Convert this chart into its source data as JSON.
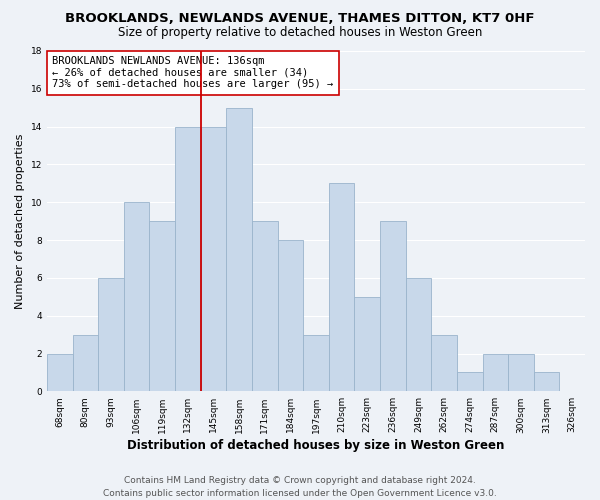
{
  "title": "BROOKLANDS, NEWLANDS AVENUE, THAMES DITTON, KT7 0HF",
  "subtitle": "Size of property relative to detached houses in Weston Green",
  "xlabel": "Distribution of detached houses by size in Weston Green",
  "ylabel": "Number of detached properties",
  "footer_line1": "Contains HM Land Registry data © Crown copyright and database right 2024.",
  "footer_line2": "Contains public sector information licensed under the Open Government Licence v3.0.",
  "bin_labels": [
    "68sqm",
    "80sqm",
    "93sqm",
    "106sqm",
    "119sqm",
    "132sqm",
    "145sqm",
    "158sqm",
    "171sqm",
    "184sqm",
    "197sqm",
    "210sqm",
    "223sqm",
    "236sqm",
    "249sqm",
    "262sqm",
    "274sqm",
    "287sqm",
    "300sqm",
    "313sqm",
    "326sqm"
  ],
  "bar_heights": [
    2,
    3,
    6,
    10,
    9,
    14,
    14,
    15,
    9,
    8,
    3,
    11,
    5,
    9,
    6,
    3,
    1,
    2,
    2,
    1,
    0
  ],
  "bar_color": "#c8d8ea",
  "bar_edge_color": "#9ab4cc",
  "vline_x": 5.5,
  "vline_color": "#cc0000",
  "annotation_line1": "BROOKLANDS NEWLANDS AVENUE: 136sqm",
  "annotation_line2": "← 26% of detached houses are smaller (34)",
  "annotation_line3": "73% of semi-detached houses are larger (95) →",
  "annotation_box_facecolor": "#ffffff",
  "annotation_box_edgecolor": "#cc0000",
  "ylim": [
    0,
    18
  ],
  "yticks": [
    0,
    2,
    4,
    6,
    8,
    10,
    12,
    14,
    16,
    18
  ],
  "background_color": "#eef2f7",
  "grid_color": "#ffffff",
  "title_fontsize": 9.5,
  "subtitle_fontsize": 8.5,
  "xlabel_fontsize": 8.5,
  "ylabel_fontsize": 8,
  "tick_fontsize": 6.5,
  "annotation_fontsize": 7.5,
  "footer_fontsize": 6.5
}
